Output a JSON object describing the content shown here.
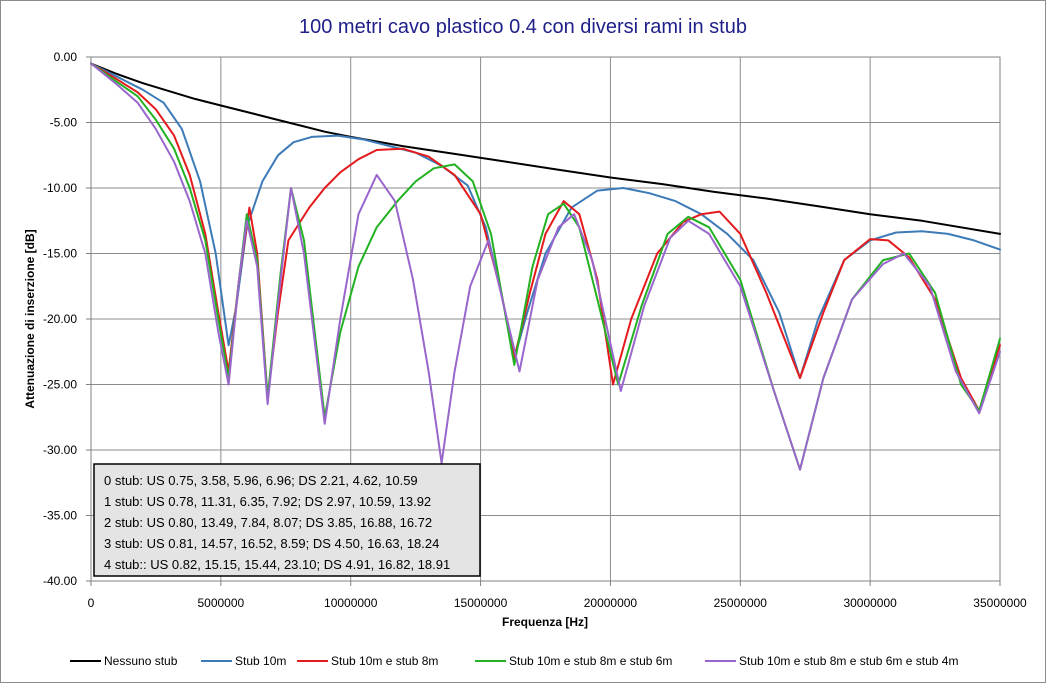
{
  "chart_data": {
    "type": "line",
    "title": "100 metri cavo plastico 0.4 con diversi rami in stub",
    "xlabel": "Frequenza [Hz]",
    "ylabel": "Attenuazione di inserzione [dB]",
    "xlim": [
      0,
      35000000
    ],
    "ylim": [
      -40,
      0
    ],
    "x_ticks": [
      0,
      5000000,
      10000000,
      15000000,
      20000000,
      25000000,
      30000000,
      35000000
    ],
    "x_tick_labels": [
      "0",
      "5000000",
      "10000000",
      "15000000",
      "20000000",
      "25000000",
      "30000000",
      "35000000"
    ],
    "y_ticks": [
      0,
      -5,
      -10,
      -15,
      -20,
      -25,
      -30,
      -35,
      -40
    ],
    "y_tick_labels": [
      "0.00",
      "-5.00",
      "-10.00",
      "-15.00",
      "-20.00",
      "-25.00",
      "-30.00",
      "-35.00",
      "-40.00"
    ],
    "grid": true,
    "legend_position": "bottom",
    "series": [
      {
        "name": "Nessuno stub",
        "color": "#000000",
        "points": [
          [
            0,
            -0.5
          ],
          [
            1000000,
            -1.3
          ],
          [
            2000000,
            -2.0
          ],
          [
            3000000,
            -2.6
          ],
          [
            4000000,
            -3.2
          ],
          [
            5000000,
            -3.7
          ],
          [
            6000000,
            -4.2
          ],
          [
            7000000,
            -4.7
          ],
          [
            8000000,
            -5.2
          ],
          [
            9000000,
            -5.7
          ],
          [
            10000000,
            -6.1
          ],
          [
            12000000,
            -6.8
          ],
          [
            14000000,
            -7.4
          ],
          [
            16000000,
            -8.0
          ],
          [
            18000000,
            -8.6
          ],
          [
            20000000,
            -9.2
          ],
          [
            22000000,
            -9.7
          ],
          [
            24000000,
            -10.3
          ],
          [
            26000000,
            -10.8
          ],
          [
            28000000,
            -11.4
          ],
          [
            30000000,
            -12.0
          ],
          [
            32000000,
            -12.5
          ],
          [
            35000000,
            -13.5
          ]
        ]
      },
      {
        "name": "Stub 10m",
        "color": "#3d7ab8",
        "points": [
          [
            0,
            -0.5
          ],
          [
            1000000,
            -1.5
          ],
          [
            2000000,
            -2.5
          ],
          [
            2800000,
            -3.5
          ],
          [
            3500000,
            -5.5
          ],
          [
            4200000,
            -9.5
          ],
          [
            4800000,
            -15.0
          ],
          [
            5300000,
            -22.0
          ],
          [
            5600000,
            -19.0
          ],
          [
            6000000,
            -13.0
          ],
          [
            6600000,
            -9.5
          ],
          [
            7200000,
            -7.5
          ],
          [
            7800000,
            -6.5
          ],
          [
            8500000,
            -6.1
          ],
          [
            9500000,
            -6.0
          ],
          [
            10500000,
            -6.3
          ],
          [
            11500000,
            -6.8
          ],
          [
            12500000,
            -7.3
          ],
          [
            13500000,
            -8.3
          ],
          [
            14500000,
            -9.8
          ],
          [
            15200000,
            -13.0
          ],
          [
            15800000,
            -18.0
          ],
          [
            16300000,
            -23.0
          ],
          [
            16800000,
            -19.5
          ],
          [
            17500000,
            -15.0
          ],
          [
            18500000,
            -11.5
          ],
          [
            19500000,
            -10.2
          ],
          [
            20500000,
            -10.0
          ],
          [
            21500000,
            -10.4
          ],
          [
            22500000,
            -11.0
          ],
          [
            23500000,
            -12.0
          ],
          [
            24500000,
            -13.5
          ],
          [
            25500000,
            -15.5
          ],
          [
            26500000,
            -19.5
          ],
          [
            27300000,
            -24.5
          ],
          [
            28000000,
            -20.0
          ],
          [
            29000000,
            -15.5
          ],
          [
            30000000,
            -14.0
          ],
          [
            31000000,
            -13.4
          ],
          [
            32000000,
            -13.3
          ],
          [
            33000000,
            -13.5
          ],
          [
            34000000,
            -14.0
          ],
          [
            35000000,
            -14.7
          ]
        ]
      },
      {
        "name": "Stub 10m e stub 8m",
        "color": "#e41a1c",
        "points": [
          [
            0,
            -0.5
          ],
          [
            1000000,
            -1.7
          ],
          [
            1800000,
            -2.7
          ],
          [
            2500000,
            -4.0
          ],
          [
            3200000,
            -6.0
          ],
          [
            3800000,
            -9.0
          ],
          [
            4400000,
            -13.5
          ],
          [
            4900000,
            -19.5
          ],
          [
            5300000,
            -24.0
          ],
          [
            5700000,
            -17.0
          ],
          [
            6100000,
            -11.5
          ],
          [
            6400000,
            -15.0
          ],
          [
            6800000,
            -26.0
          ],
          [
            7200000,
            -19.5
          ],
          [
            7600000,
            -14.0
          ],
          [
            8400000,
            -11.5
          ],
          [
            9000000,
            -10.0
          ],
          [
            9600000,
            -8.8
          ],
          [
            10300000,
            -7.8
          ],
          [
            11000000,
            -7.1
          ],
          [
            12000000,
            -7.0
          ],
          [
            13000000,
            -7.6
          ],
          [
            14000000,
            -9.0
          ],
          [
            15000000,
            -12.0
          ],
          [
            15800000,
            -18.0
          ],
          [
            16300000,
            -23.0
          ],
          [
            16900000,
            -18.0
          ],
          [
            17500000,
            -13.5
          ],
          [
            18200000,
            -11.0
          ],
          [
            18800000,
            -12.0
          ],
          [
            19500000,
            -17.0
          ],
          [
            20100000,
            -25.0
          ],
          [
            20800000,
            -20.0
          ],
          [
            21800000,
            -15.0
          ],
          [
            22800000,
            -12.6
          ],
          [
            23500000,
            -12.0
          ],
          [
            24200000,
            -11.8
          ],
          [
            25000000,
            -13.5
          ],
          [
            26000000,
            -18.0
          ],
          [
            27300000,
            -24.5
          ],
          [
            28200000,
            -19.5
          ],
          [
            29000000,
            -15.5
          ],
          [
            30000000,
            -13.9
          ],
          [
            30700000,
            -14.0
          ],
          [
            31500000,
            -15.3
          ],
          [
            32500000,
            -18.5
          ],
          [
            33500000,
            -24.5
          ],
          [
            34200000,
            -27.0
          ],
          [
            35000000,
            -22.0
          ]
        ]
      },
      {
        "name": "Stub 10m e stub 8m e stub 6m",
        "color": "#22b222",
        "points": [
          [
            0,
            -0.5
          ],
          [
            1000000,
            -1.9
          ],
          [
            1800000,
            -3.0
          ],
          [
            2500000,
            -4.8
          ],
          [
            3200000,
            -7.0
          ],
          [
            3800000,
            -10.0
          ],
          [
            4400000,
            -14.0
          ],
          [
            4900000,
            -20.0
          ],
          [
            5300000,
            -24.5
          ],
          [
            5700000,
            -17.0
          ],
          [
            6000000,
            -12.0
          ],
          [
            6400000,
            -15.5
          ],
          [
            6800000,
            -26.0
          ],
          [
            7300000,
            -16.5
          ],
          [
            7700000,
            -10.0
          ],
          [
            8200000,
            -14.0
          ],
          [
            9000000,
            -27.5
          ],
          [
            9600000,
            -21.0
          ],
          [
            10300000,
            -16.0
          ],
          [
            11000000,
            -13.0
          ],
          [
            11800000,
            -11.0
          ],
          [
            12500000,
            -9.5
          ],
          [
            13200000,
            -8.5
          ],
          [
            14000000,
            -8.2
          ],
          [
            14700000,
            -9.5
          ],
          [
            15400000,
            -13.5
          ],
          [
            16300000,
            -23.5
          ],
          [
            17000000,
            -16.0
          ],
          [
            17600000,
            -12.0
          ],
          [
            18200000,
            -11.2
          ],
          [
            18800000,
            -13.0
          ],
          [
            19500000,
            -18.5
          ],
          [
            20300000,
            -25.0
          ],
          [
            21200000,
            -19.0
          ],
          [
            22200000,
            -13.5
          ],
          [
            23000000,
            -12.2
          ],
          [
            23800000,
            -13.0
          ],
          [
            25000000,
            -17.0
          ],
          [
            26300000,
            -25.5
          ],
          [
            27300000,
            -31.5
          ],
          [
            28200000,
            -24.5
          ],
          [
            29300000,
            -18.5
          ],
          [
            30500000,
            -15.5
          ],
          [
            31500000,
            -15.0
          ],
          [
            32500000,
            -18.0
          ],
          [
            33500000,
            -25.0
          ],
          [
            34200000,
            -27.0
          ],
          [
            35000000,
            -21.5
          ]
        ]
      },
      {
        "name": "Stub 10m e stub 8m e stub 6m e stub 4m",
        "color": "#9966cc",
        "points": [
          [
            0,
            -0.5
          ],
          [
            1000000,
            -2.1
          ],
          [
            1800000,
            -3.5
          ],
          [
            2500000,
            -5.5
          ],
          [
            3200000,
            -8.0
          ],
          [
            3800000,
            -11.0
          ],
          [
            4400000,
            -15.0
          ],
          [
            4900000,
            -21.0
          ],
          [
            5300000,
            -25.0
          ],
          [
            5700000,
            -17.0
          ],
          [
            6000000,
            -12.5
          ],
          [
            6400000,
            -16.0
          ],
          [
            6800000,
            -26.5
          ],
          [
            7300000,
            -17.0
          ],
          [
            7700000,
            -10.0
          ],
          [
            8200000,
            -15.0
          ],
          [
            9000000,
            -28.0
          ],
          [
            9600000,
            -20.0
          ],
          [
            10300000,
            -12.0
          ],
          [
            11000000,
            -9.0
          ],
          [
            11700000,
            -11.0
          ],
          [
            12400000,
            -17.0
          ],
          [
            13000000,
            -24.0
          ],
          [
            13500000,
            -31.0
          ],
          [
            14000000,
            -24.0
          ],
          [
            14600000,
            -17.5
          ],
          [
            15300000,
            -14.0
          ],
          [
            15900000,
            -19.0
          ],
          [
            16500000,
            -24.0
          ],
          [
            17200000,
            -17.0
          ],
          [
            18000000,
            -13.0
          ],
          [
            18600000,
            -12.0
          ],
          [
            19300000,
            -15.5
          ],
          [
            20400000,
            -25.5
          ],
          [
            21300000,
            -19.0
          ],
          [
            22300000,
            -13.8
          ],
          [
            23000000,
            -12.5
          ],
          [
            23800000,
            -13.5
          ],
          [
            25000000,
            -17.5
          ],
          [
            26300000,
            -25.5
          ],
          [
            27300000,
            -31.5
          ],
          [
            28200000,
            -24.5
          ],
          [
            29300000,
            -18.5
          ],
          [
            30500000,
            -15.8
          ],
          [
            31300000,
            -15.0
          ],
          [
            32300000,
            -17.5
          ],
          [
            33300000,
            -24.0
          ],
          [
            34200000,
            -27.2
          ],
          [
            35000000,
            -22.5
          ]
        ]
      }
    ],
    "annotation_lines": [
      "0 stub: US 0.75, 3.58,  5.96, 6.96; DS 2.21, 4.62, 10.59",
      "1 stub: US 0.78, 11.31, 6.35, 7.92; DS 2.97, 10.59, 13.92",
      "2 stub: US 0.80, 13.49, 7.84, 8.07; DS 3.85, 16.88, 16.72",
      "3 stub: US 0.81, 14.57, 16.52, 8.59; DS 4.50, 16.63, 18.24",
      "4 stub:: US 0.82, 15.15, 15.44, 23.10; DS 4.91, 16.82, 18.91"
    ]
  }
}
